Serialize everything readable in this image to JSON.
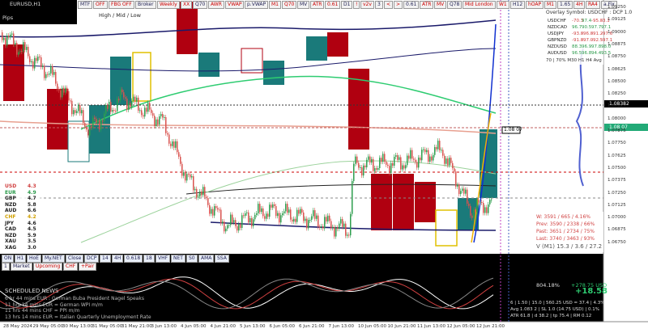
{
  "window": {
    "title": "EURUSD,H1",
    "pips_label": "Pips",
    "hml_label": "High / Mid / Low"
  },
  "toolbar": [
    "MTF",
    "OFF",
    "FBG OFF",
    "Broker",
    "Weekly",
    "XX",
    "Q70",
    "AWR",
    "VWAP",
    "p.VWAP",
    "M1",
    "Q70",
    "MV",
    "ATR",
    "0.61",
    "D1",
    "!",
    "v2v",
    "3",
    "<",
    ">",
    "0.61",
    "ATR",
    "MV",
    "Q78",
    "Mid London",
    "W1",
    "H12",
    "hOAP",
    "M1",
    "1.65",
    "4H",
    "RA4",
    "a.Fix"
  ],
  "overlay": {
    "title": "Overlay Symbol: USDCHF : DCP 1.0",
    "rows": [
      [
        "USDCHF",
        "-70.3",
        "97.4",
        "-95.8",
        "-3.1"
      ],
      [
        "NZDCAD",
        "96.7",
        "90.5",
        "97.7",
        "97.1"
      ],
      [
        "USDJPY",
        "-93.8",
        "-96.8",
        "-91.2",
        "-97.6"
      ],
      [
        "GBPNZD",
        "-91.8",
        "-97.0",
        "-92.5",
        "-97.1"
      ],
      [
        "NZDUSD",
        "88.3",
        "96.9",
        "97.8",
        "98.0"
      ],
      [
        "AUDUSD",
        "96.5",
        "96.8",
        "94.4",
        "93.5"
      ]
    ],
    "footer": "70 | 70% M30 H1 H4 Avg"
  },
  "strength": [
    [
      "USD",
      "4.3"
    ],
    [
      "EUR",
      "4.9"
    ],
    [
      "GBP",
      "4.7"
    ],
    [
      "NZD",
      "5.8"
    ],
    [
      "AUD",
      "6.6"
    ],
    [
      "CHF",
      "4.2"
    ],
    [
      "JPY",
      "4.6"
    ],
    [
      "CAD",
      "4.5"
    ],
    [
      "NZD",
      "5.9"
    ],
    [
      "XAU",
      "3.5"
    ],
    [
      "XAG",
      "3.0"
    ]
  ],
  "price_axis": [
    "1.09250",
    "1.09125",
    "1.09000",
    "1.08875",
    "1.08750",
    "1.08625",
    "1.08500",
    "1.08250",
    "1.08125",
    "1.08000",
    "1.07875",
    "1.07750",
    "1.07625",
    "1.07500",
    "1.07375",
    "1.07250",
    "1.07125",
    "1.07000",
    "1.06875",
    "1.06750"
  ],
  "price_tags": {
    "current": "1.08382",
    "line": "1.08 07"
  },
  "time_axis": [
    "28 May 2024",
    "29 May 05:00",
    "30 May 13:00",
    "31 May 05:00",
    "31 May 21:00",
    "3 Jun 13:00",
    "4 Jun 05:00",
    "4 Jun 21:00",
    "5 Jun 13:00",
    "6 Jun 05:00",
    "6 Jun 21:00",
    "7 Jun 13:00",
    "10 Jun 05:00",
    "10 Jun 21:00",
    "11 Jun 13:00",
    "12 Jun 05:00",
    "12 Jun 21:00"
  ],
  "bottom_toolbar": {
    "row1": [
      "ON",
      "H1",
      "HoE",
      "My.NET",
      "Close",
      "DCP",
      "14",
      "4H",
      "0.618",
      "18",
      "VHF",
      "NET",
      "S0",
      "AMA",
      "SSA"
    ],
    "row2": [
      "1",
      "Market",
      "Upcoming",
      "CHF",
      "+Pair"
    ]
  },
  "news": {
    "title": "SCHEDULED NEWS",
    "items": [
      "6 hr 44 mins EUR : German Buba President Nagel Speaks",
      "11 hrs 14 mins EUR = German WPI m/m",
      "11 hrs 44 mins CHF = PPI m/m",
      "13 hrs 14 mins EUR = Italian Quarterly Unemployment Rate"
    ]
  },
  "stats": [
    "W: 3591 / 665 / 4.16%",
    "Prev: 3590 / 2338 / 66%",
    "Past: 3651 / 2734 / 75%",
    "Last: 3740 / 3463 / 93%",
    "V (M1) 15.3 / 3.6 / 27.2"
  ],
  "account": {
    "percent": "804.18%",
    "usd": "+278.75 USD",
    "pips": "+18.58",
    "lines": [
      "6 | 1.50 | 15.0 | 560.25 USD = 37.4 | 4.3%",
      "Avg 1.083 2 | SL 1.0 (14.75 USD) | 0.1%",
      "ATR 61.8 | d 38.2 | tp 75.4 | RM 0.12"
    ]
  }
}
